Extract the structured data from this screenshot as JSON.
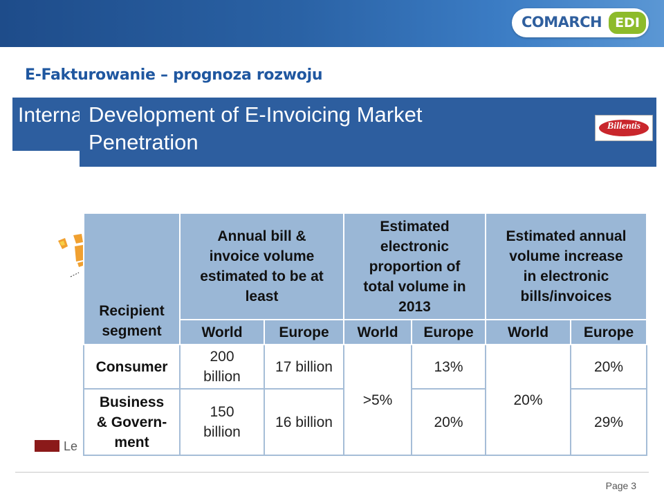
{
  "header": {
    "brand": "COMARCH",
    "brand_badge": "EDI"
  },
  "slide_title": "E-Fakturowanie – prognoza rozwoju",
  "back_slide_title": "Interna",
  "front_slide_title_line1": "Development of E-Invoicing Market",
  "front_slide_title_line2": "Penetration",
  "source_logo": "Billentis",
  "legend_label": "Le",
  "colors": {
    "header_blue": "#2d5e9f",
    "table_header": "#9ab7d6",
    "legend": "#8b1a1a",
    "brand_green": "#8dbb2a"
  },
  "table": {
    "headers": {
      "recipient": [
        "Recipient",
        "segment"
      ],
      "annual": [
        "Annual bill &",
        "invoice volume",
        "estimated to be at",
        "least"
      ],
      "proportion": [
        "Estimated",
        "electronic",
        "proportion of",
        "total volume in",
        "2013"
      ],
      "increase": [
        "Estimated annual",
        "volume increase",
        "in electronic",
        "bills/invoices"
      ]
    },
    "sub": [
      "World",
      "Europe",
      "World",
      "Europe",
      "World",
      "Europe"
    ],
    "rows": [
      {
        "segment": [
          "Consumer"
        ],
        "annual_world": [
          "200",
          "billion"
        ],
        "annual_europe": "17 billion",
        "prop_europe": "13%",
        "inc_europe": "20%"
      },
      {
        "segment": [
          "Business",
          "& Govern-",
          "ment"
        ],
        "annual_world": [
          "150",
          "billion"
        ],
        "annual_europe": "16 billion",
        "prop_europe": "20%",
        "inc_europe": "29%"
      }
    ],
    "prop_world_merged": ">5%",
    "inc_world_merged": "20%"
  },
  "footer": {
    "page": "Page 3"
  }
}
